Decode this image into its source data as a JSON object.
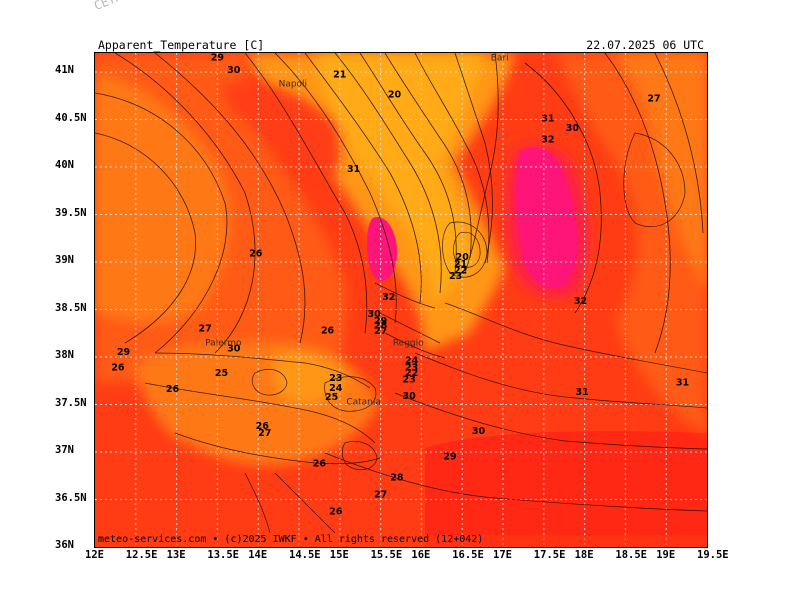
{
  "header": {
    "corner_tag": "CETA - m",
    "title": "Apparent_Temperature [C]",
    "datetime": "22.07.2025 06 UTC"
  },
  "footer": {
    "credit": "meteo-services.com • (c)2025 IWKF • All rights reserved (12+042)"
  },
  "axes": {
    "lon_ticks": [
      "12E",
      "12.5E",
      "13E",
      "13.5E",
      "14E",
      "14.5E",
      "15E",
      "15.5E",
      "16E",
      "16.5E",
      "17E",
      "17.5E",
      "18E",
      "18.5E",
      "19E",
      "19.5E"
    ],
    "lat_ticks": [
      "36N",
      "36.5N",
      "37N",
      "37.5N",
      "38N",
      "38.5N",
      "39N",
      "39.5N",
      "40N",
      "40.5N",
      "41N"
    ]
  },
  "cities": [
    {
      "name": "Napoli",
      "lon": 14.25,
      "lat": 40.85
    },
    {
      "name": "Bari",
      "lon": 16.85,
      "lat": 41.12
    },
    {
      "name": "Palermo",
      "lon": 13.35,
      "lat": 38.12
    },
    {
      "name": "Catania",
      "lon": 15.08,
      "lat": 37.5
    },
    {
      "name": "Reggio",
      "lon": 15.65,
      "lat": 38.12
    }
  ],
  "contour_labels": [
    {
      "t": "29",
      "lon": 13.5,
      "lat": 41.12
    },
    {
      "t": "30",
      "lon": 13.7,
      "lat": 40.99
    },
    {
      "t": "21",
      "lon": 15.0,
      "lat": 40.94
    },
    {
      "t": "20",
      "lon": 15.67,
      "lat": 40.73
    },
    {
      "t": "27",
      "lon": 18.85,
      "lat": 40.69
    },
    {
      "t": "31",
      "lon": 17.55,
      "lat": 40.48
    },
    {
      "t": "30",
      "lon": 17.85,
      "lat": 40.38
    },
    {
      "t": "32",
      "lon": 17.55,
      "lat": 40.26
    },
    {
      "t": "31",
      "lon": 15.17,
      "lat": 39.95
    },
    {
      "t": "26",
      "lon": 13.97,
      "lat": 39.06
    },
    {
      "t": "20",
      "lon": 16.5,
      "lat": 39.02
    },
    {
      "t": "21",
      "lon": 16.48,
      "lat": 38.95
    },
    {
      "t": "22",
      "lon": 16.48,
      "lat": 38.88
    },
    {
      "t": "23",
      "lon": 16.42,
      "lat": 38.82
    },
    {
      "t": "32",
      "lon": 15.6,
      "lat": 38.6
    },
    {
      "t": "32",
      "lon": 17.95,
      "lat": 38.56
    },
    {
      "t": "30",
      "lon": 15.42,
      "lat": 38.42
    },
    {
      "t": "29",
      "lon": 15.5,
      "lat": 38.35
    },
    {
      "t": "28",
      "lon": 15.5,
      "lat": 38.3
    },
    {
      "t": "27",
      "lon": 13.35,
      "lat": 38.27
    },
    {
      "t": "26",
      "lon": 14.85,
      "lat": 38.25
    },
    {
      "t": "27",
      "lon": 15.5,
      "lat": 38.24
    },
    {
      "t": "29",
      "lon": 12.35,
      "lat": 38.02
    },
    {
      "t": "30",
      "lon": 13.7,
      "lat": 38.06
    },
    {
      "t": "26",
      "lon": 12.28,
      "lat": 37.86
    },
    {
      "t": "25",
      "lon": 13.55,
      "lat": 37.8
    },
    {
      "t": "23",
      "lon": 14.95,
      "lat": 37.75
    },
    {
      "t": "26",
      "lon": 12.95,
      "lat": 37.63
    },
    {
      "t": "24",
      "lon": 14.95,
      "lat": 37.64
    },
    {
      "t": "25",
      "lon": 14.9,
      "lat": 37.55
    },
    {
      "t": "31",
      "lon": 19.2,
      "lat": 37.7
    },
    {
      "t": "31",
      "lon": 17.97,
      "lat": 37.6
    },
    {
      "t": "30",
      "lon": 15.85,
      "lat": 37.56
    },
    {
      "t": "26",
      "lon": 14.05,
      "lat": 37.24
    },
    {
      "t": "27",
      "lon": 14.08,
      "lat": 37.17
    },
    {
      "t": "30",
      "lon": 16.7,
      "lat": 37.19
    },
    {
      "t": "29",
      "lon": 16.35,
      "lat": 36.92
    },
    {
      "t": "26",
      "lon": 14.75,
      "lat": 36.85
    },
    {
      "t": "28",
      "lon": 15.7,
      "lat": 36.7
    },
    {
      "t": "27",
      "lon": 15.5,
      "lat": 36.52
    },
    {
      "t": "26",
      "lon": 14.95,
      "lat": 36.34
    }
  ],
  "stacked_labels_reggio": [
    {
      "t": "24",
      "lon": 15.88,
      "lat": 37.93
    },
    {
      "t": "23",
      "lon": 15.88,
      "lat": 37.86
    },
    {
      "t": "22",
      "lon": 15.88,
      "lat": 37.8
    },
    {
      "t": "23",
      "lon": 15.85,
      "lat": 37.73
    }
  ],
  "colors": {
    "bg_base": "#ff3c14",
    "band_29": "#ff5a14",
    "band_27": "#ff7814",
    "band_24": "#ff9614",
    "band_21": "#ffaa14",
    "band_33": "#ff1e50",
    "band_34": "#ff1478",
    "band_31": "#ff2814"
  }
}
